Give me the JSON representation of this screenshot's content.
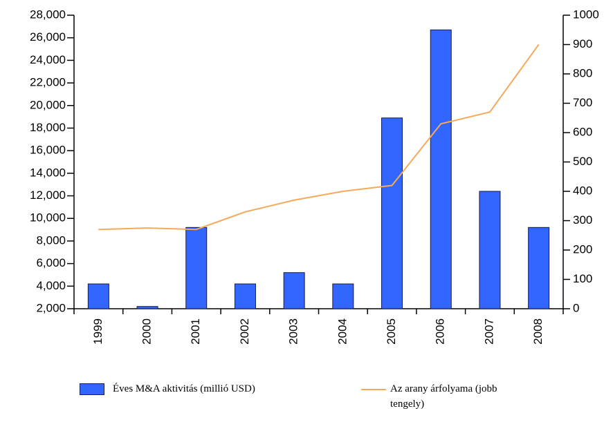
{
  "chart_data": {
    "type": "bar+line",
    "categories": [
      "1999",
      "2000",
      "2001",
      "2002",
      "2003",
      "2004",
      "2005",
      "2006",
      "2007",
      "2008"
    ],
    "series": [
      {
        "name": "Éves M&A aktivitás (millió USD)",
        "type": "bar",
        "color": "#3366ff",
        "values": [
          4200,
          2200,
          9200,
          4200,
          5200,
          4200,
          18900,
          26700,
          12400,
          9200
        ]
      },
      {
        "name": "Az arany árfolyama (jobb tengely)",
        "type": "line",
        "axis": "y2",
        "color": "#f5a95a",
        "values": [
          270,
          275,
          270,
          330,
          370,
          400,
          420,
          630,
          670,
          900
        ]
      }
    ],
    "ylim": [
      2000,
      28000
    ],
    "yticks": [
      {
        "value": 2000,
        "label": "2,000"
      },
      {
        "value": 4000,
        "label": "4,000"
      },
      {
        "value": 6000,
        "label": "6,000"
      },
      {
        "value": 8000,
        "label": "8,000"
      },
      {
        "value": 10000,
        "label": "10,000"
      },
      {
        "value": 12000,
        "label": "12,000"
      },
      {
        "value": 14000,
        "label": "14,000"
      },
      {
        "value": 16000,
        "label": "16,000"
      },
      {
        "value": 18000,
        "label": "18,000"
      },
      {
        "value": 20000,
        "label": "20,000"
      },
      {
        "value": 22000,
        "label": "22,000"
      },
      {
        "value": 24000,
        "label": "24,000"
      },
      {
        "value": 26000,
        "label": "26,000"
      },
      {
        "value": 28000,
        "label": "28,000"
      }
    ],
    "y2lim": [
      0,
      1000
    ],
    "y2ticks": [
      0,
      100,
      200,
      300,
      400,
      500,
      600,
      700,
      800,
      900,
      1000
    ]
  }
}
